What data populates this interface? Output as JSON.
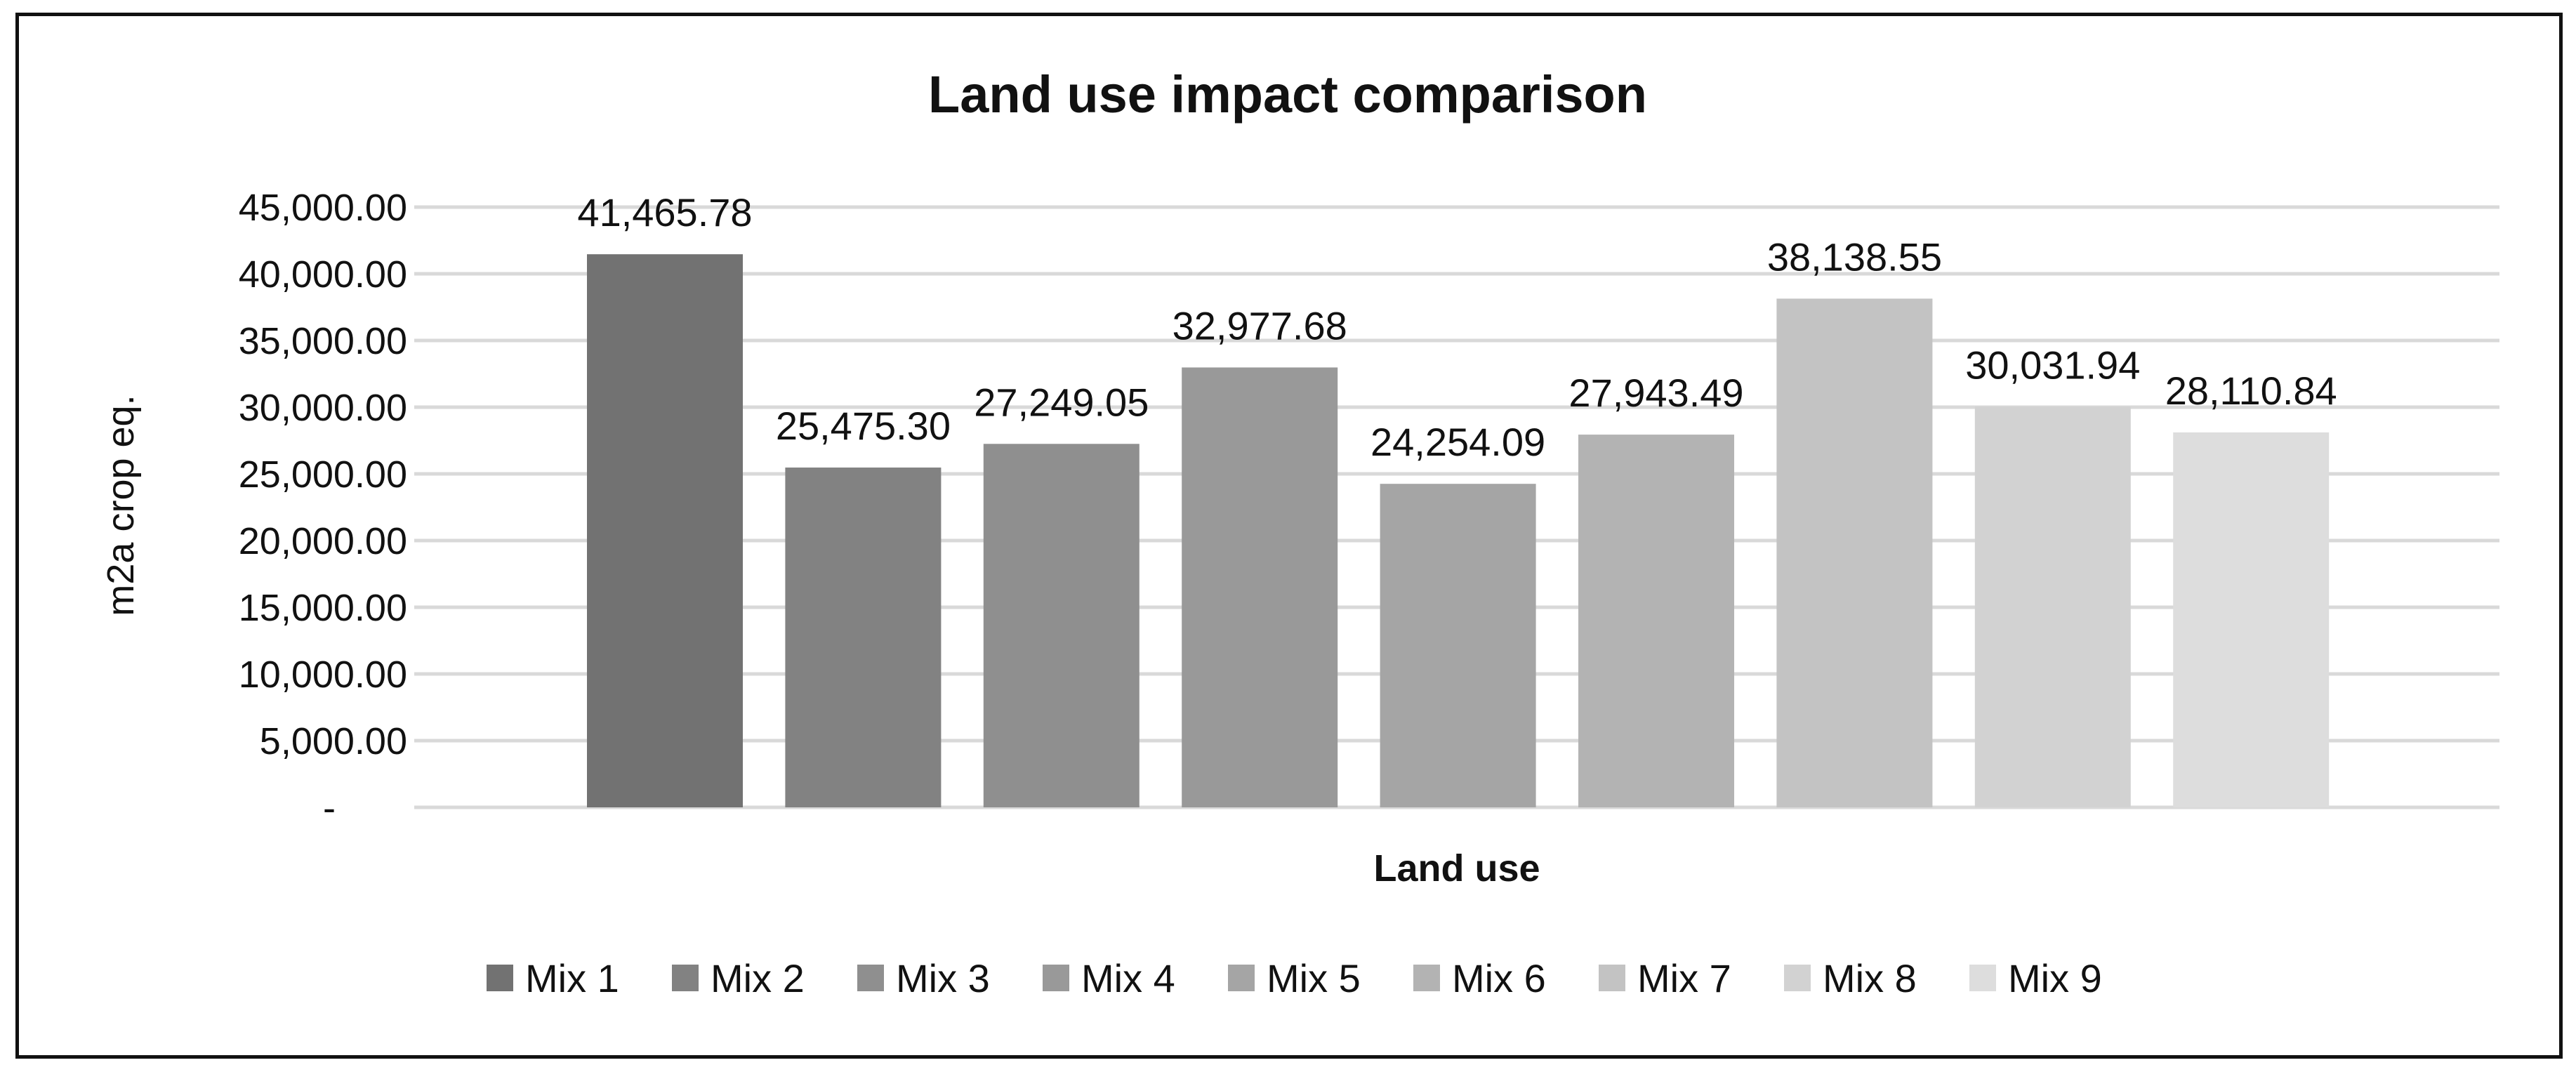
{
  "chart_data": {
    "type": "bar",
    "title": "Land use impact comparison",
    "xlabel": "Land use",
    "ylabel": "m2a crop eq.",
    "ylim": [
      0,
      45000
    ],
    "yticks": [
      0,
      5000,
      10000,
      15000,
      20000,
      25000,
      30000,
      35000,
      40000,
      45000
    ],
    "ytick_labels": [
      "-",
      "5,000.00",
      "10,000.00",
      "15,000.00",
      "20,000.00",
      "25,000.00",
      "30,000.00",
      "35,000.00",
      "40,000.00",
      "45,000.00"
    ],
    "grid": true,
    "legend_position": "bottom",
    "series": [
      {
        "name": "Mix 1",
        "value": 41465.78,
        "label": "41,465.78",
        "color": "#727272"
      },
      {
        "name": "Mix 2",
        "value": 25475.3,
        "label": "25,475.30",
        "color": "#828282"
      },
      {
        "name": "Mix 3",
        "value": 27249.05,
        "label": "27,249.05",
        "color": "#8f8f8f"
      },
      {
        "name": "Mix 4",
        "value": 32977.68,
        "label": "32,977.68",
        "color": "#999999"
      },
      {
        "name": "Mix 5",
        "value": 24254.09,
        "label": "24,254.09",
        "color": "#a5a5a5"
      },
      {
        "name": "Mix 6",
        "value": 27943.49,
        "label": "27,943.49",
        "color": "#b3b3b3"
      },
      {
        "name": "Mix 7",
        "value": 38138.55,
        "label": "38,138.55",
        "color": "#c3c3c3"
      },
      {
        "name": "Mix 8",
        "value": 30031.94,
        "label": "30,031.94",
        "color": "#d2d2d2"
      },
      {
        "name": "Mix 9",
        "value": 28110.84,
        "label": "28,110.84",
        "color": "#dddddd"
      }
    ]
  }
}
